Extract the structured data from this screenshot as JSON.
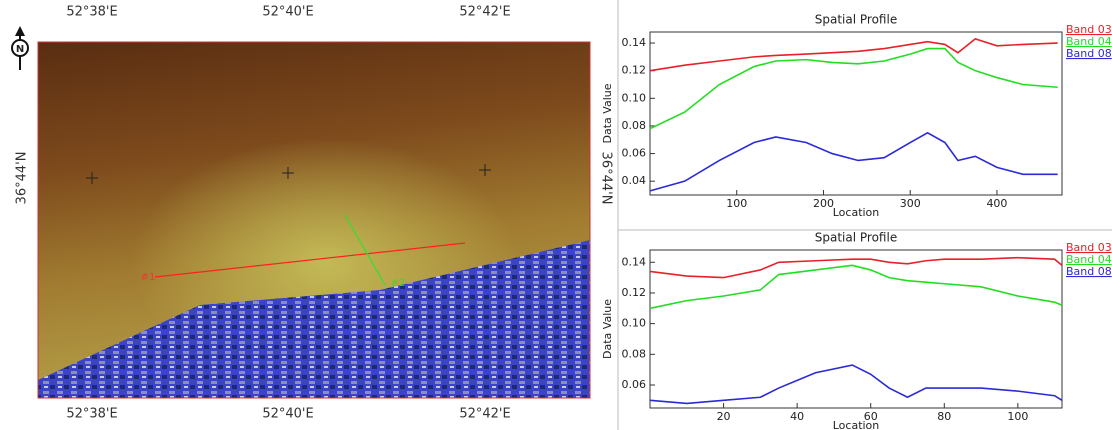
{
  "map": {
    "north_label": "N",
    "lon_labels": [
      "52°38'E",
      "52°40'E",
      "52°42'E"
    ],
    "lat_label": "36°44'N",
    "transect_labels": [
      "#1",
      "#2"
    ]
  },
  "chart_data": [
    {
      "type": "line",
      "title": "Spatial Profile",
      "x_label": "Location",
      "y_label": "Data Value",
      "legend": "right",
      "x": [
        0,
        40,
        80,
        120,
        145,
        180,
        210,
        240,
        270,
        300,
        320,
        340,
        355,
        375,
        400,
        430,
        470
      ],
      "series": [
        {
          "name": "Band 03",
          "color": "#e8202a",
          "values": [
            0.12,
            0.124,
            0.127,
            0.13,
            0.131,
            0.132,
            0.133,
            0.134,
            0.136,
            0.139,
            0.141,
            0.139,
            0.133,
            0.143,
            0.138,
            0.139,
            0.14
          ]
        },
        {
          "name": "Band 04",
          "color": "#22dd22",
          "values": [
            0.078,
            0.09,
            0.11,
            0.123,
            0.127,
            0.128,
            0.126,
            0.125,
            0.127,
            0.132,
            0.136,
            0.136,
            0.126,
            0.12,
            0.115,
            0.11,
            0.108
          ]
        },
        {
          "name": "Band 08",
          "color": "#2a2ad8",
          "values": [
            0.033,
            0.04,
            0.055,
            0.068,
            0.072,
            0.068,
            0.06,
            0.055,
            0.057,
            0.068,
            0.075,
            0.068,
            0.055,
            0.058,
            0.05,
            0.045,
            0.045
          ]
        }
      ],
      "xlim": [
        0,
        475
      ],
      "xticks": [
        100,
        200,
        300,
        400
      ],
      "ylim": [
        0.03,
        0.148
      ],
      "yticks": [
        0.04,
        0.06,
        0.08,
        {
          "value": 0.1,
          "label": "0.10"
        },
        0.12,
        0.14
      ]
    },
    {
      "type": "line",
      "title": "Spatial Profile",
      "x_label": "Location",
      "y_label": "Data Value",
      "legend": "right",
      "x": [
        0,
        10,
        20,
        30,
        35,
        45,
        55,
        60,
        65,
        70,
        75,
        80,
        90,
        100,
        110,
        112
      ],
      "series": [
        {
          "name": "Band 03",
          "color": "#e8202a",
          "values": [
            0.134,
            0.131,
            0.13,
            0.135,
            0.14,
            0.141,
            0.142,
            0.142,
            0.14,
            0.139,
            0.141,
            0.142,
            0.142,
            0.143,
            0.142,
            0.138
          ]
        },
        {
          "name": "Band 04",
          "color": "#22dd22",
          "values": [
            0.11,
            0.115,
            0.118,
            0.122,
            0.132,
            0.135,
            0.138,
            0.135,
            0.13,
            0.128,
            0.127,
            0.126,
            0.124,
            0.118,
            0.114,
            0.112
          ]
        },
        {
          "name": "Band 08",
          "color": "#2a2ad8",
          "values": [
            0.05,
            0.048,
            0.05,
            0.052,
            0.058,
            0.068,
            0.073,
            0.067,
            0.058,
            0.052,
            0.058,
            0.058,
            0.058,
            0.056,
            0.053,
            0.05
          ]
        }
      ],
      "xlim": [
        0,
        112
      ],
      "xticks": [
        20,
        40,
        60,
        80,
        100
      ],
      "ylim": [
        0.045,
        0.148
      ],
      "yticks": [
        0.06,
        0.08,
        {
          "value": 0.1,
          "label": "0.10"
        },
        0.12,
        0.14
      ]
    }
  ]
}
